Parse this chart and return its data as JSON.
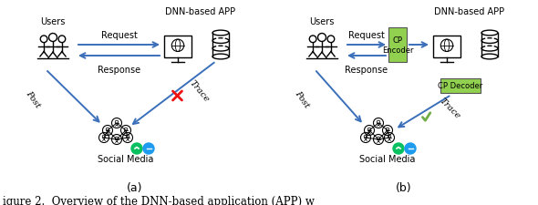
{
  "fig_width": 5.9,
  "fig_height": 2.26,
  "dpi": 100,
  "bg_color": "#ffffff",
  "arrow_color": "#3B6FBA",
  "green_color": "#70AD47",
  "red_color": "#EE1111",
  "box_green": "#92D050",
  "caption_a": "(a)",
  "caption_b": "(b)",
  "caption_fig": "igure 2.  Overview of the DNN-based application (APP) w",
  "label_users_a": "Users",
  "label_dnn_a": "DNN-based APP",
  "label_users_b": "Users",
  "label_dnn_b": "DNN-based APP",
  "label_request_a": "Request",
  "label_response_a": "Response",
  "label_request_b": "Request",
  "label_response_b": "Response",
  "label_post_a": "Post",
  "label_trace_a": "Trace",
  "label_post_b": "Post",
  "label_trace_b": "Trace",
  "label_social_a": "Social Media",
  "label_social_b": "Social Media",
  "label_cp_encoder": "CP\nEncoder",
  "label_cp_decoder": "CP Decoder"
}
